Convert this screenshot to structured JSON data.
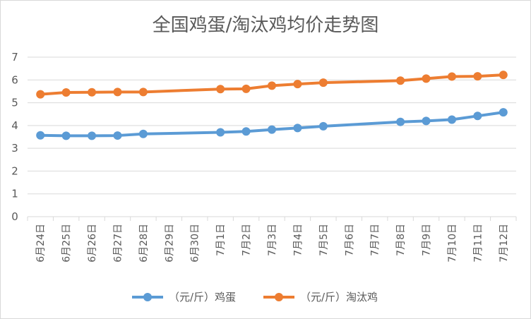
{
  "chart_data": {
    "type": "line",
    "title": "全国鸡蛋/淘汰鸡均价走势图",
    "xlabel": "",
    "ylabel": "",
    "ylim": [
      0,
      7
    ],
    "yticks": [
      0,
      1,
      2,
      3,
      4,
      5,
      6,
      7
    ],
    "grid": true,
    "legend_position": "bottom",
    "categories": [
      "6月24日",
      "6月25日",
      "6月26日",
      "6月27日",
      "6月28日",
      "6月29日",
      "6月30日",
      "7月1日",
      "7月2日",
      "7月3日",
      "7月4日",
      "7月5日",
      "7月6日",
      "7月7日",
      "7月8日",
      "7月9日",
      "7月10日",
      "7月11日",
      "7月12日"
    ],
    "series": [
      {
        "name": "（元/斤）鸡蛋",
        "color": "#5b9bd5",
        "values": [
          3.57,
          3.55,
          3.55,
          3.56,
          3.63,
          null,
          null,
          3.7,
          3.74,
          3.82,
          3.89,
          3.97,
          null,
          null,
          4.16,
          4.2,
          4.26,
          4.42,
          4.58
        ]
      },
      {
        "name": "（元/斤）淘汰鸡",
        "color": "#ed7d31",
        "values": [
          5.37,
          5.45,
          5.46,
          5.47,
          5.47,
          null,
          null,
          5.6,
          5.61,
          5.75,
          5.82,
          5.88,
          null,
          null,
          5.97,
          6.06,
          6.15,
          6.16,
          6.22
        ]
      }
    ]
  }
}
